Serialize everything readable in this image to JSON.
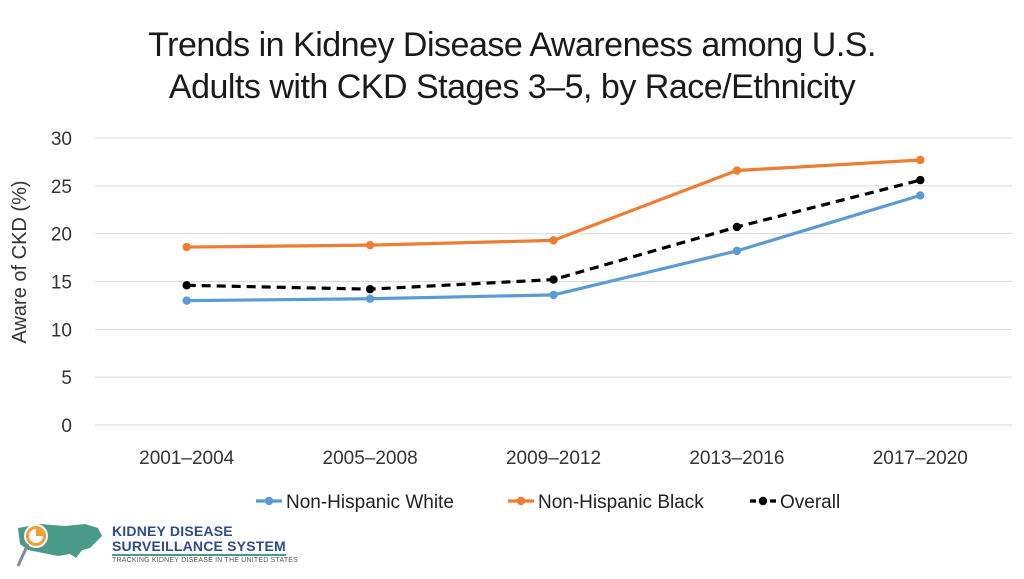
{
  "title_lines": [
    "Trends in Kidney Disease Awareness among U.S.",
    "Adults with CKD Stages 3–5, by Race/Ethnicity"
  ],
  "logo": {
    "line1": "KIDNEY DISEASE",
    "line2": "SURVEILLANCE SYSTEM",
    "tagline": "TRACKING KIDNEY DISEASE IN THE UNITED STATES"
  },
  "colors": {
    "white_series": "#5b9bd5",
    "black_series": "#ed7d31",
    "overall_series": "#000000",
    "grid": "#d9d9d9"
  },
  "chart_data": {
    "type": "line",
    "title": "Trends in Kidney Disease Awareness among U.S. Adults with CKD Stages 3–5, by Race/Ethnicity",
    "xlabel": "",
    "ylabel": "Aware of CKD (%)",
    "ylim": [
      0,
      30
    ],
    "yticks": [
      0,
      5,
      10,
      15,
      20,
      25,
      30
    ],
    "grid": true,
    "legend_position": "bottom",
    "categories": [
      "2001–2004",
      "2005–2008",
      "2009–2012",
      "2013–2016",
      "2017–2020"
    ],
    "series": [
      {
        "name": "Non-Hispanic White",
        "color": "#5b9bd5",
        "dashed": false,
        "values": [
          13.0,
          13.2,
          13.6,
          18.2,
          24.0
        ]
      },
      {
        "name": "Non-Hispanic Black",
        "color": "#ed7d31",
        "dashed": false,
        "values": [
          18.6,
          18.8,
          19.3,
          26.6,
          27.7
        ]
      },
      {
        "name": "Overall",
        "color": "#000000",
        "dashed": true,
        "values": [
          14.6,
          14.2,
          15.2,
          20.7,
          25.6
        ]
      }
    ]
  }
}
